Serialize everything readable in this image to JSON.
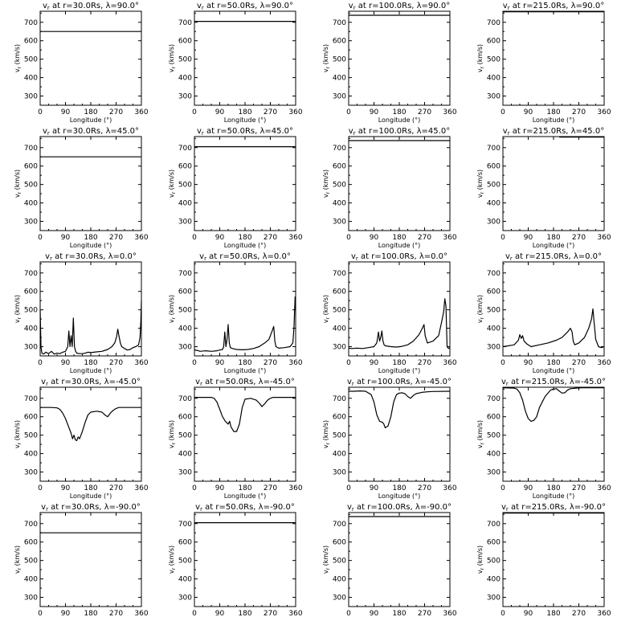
{
  "labels": {
    "ylabel": "v",
    "ylabel_sub": "r",
    "ylabel_unit": "(km/s)",
    "xlabel": "Longitude (°)",
    "title_fmt": "v{r} at r={R}Rs, λ={L}°"
  },
  "axes": {
    "xlim": [
      0,
      360
    ],
    "ylim": [
      250,
      760
    ],
    "xticks": [
      0,
      90,
      180,
      270,
      360
    ],
    "yticks": [
      300,
      400,
      500,
      600,
      700
    ]
  },
  "chart_data": [
    {
      "type": "line",
      "r": "30.0",
      "lat": "90.0",
      "title": "v_r at r=30.0Rs, λ=90.0°",
      "xlabel": "Longitude (°)",
      "ylabel": "v_r (km/s)",
      "xlim": [
        0,
        360
      ],
      "ylim": [
        250,
        760
      ],
      "x": [
        0,
        360
      ],
      "y": [
        650,
        650
      ]
    },
    {
      "type": "line",
      "r": "50.0",
      "lat": "90.0",
      "title": "v_r at r=50.0Rs, λ=90.0°",
      "xlabel": "Longitude (°)",
      "ylabel": "v_r (km/s)",
      "xlim": [
        0,
        360
      ],
      "ylim": [
        250,
        760
      ],
      "x": [
        0,
        360
      ],
      "y": [
        705,
        705
      ]
    },
    {
      "type": "line",
      "r": "100.0",
      "lat": "90.0",
      "title": "v_r at r=100.0Rs, λ=90.0°",
      "xlabel": "Longitude (°)",
      "ylabel": "v_r (km/s)",
      "xlim": [
        0,
        360
      ],
      "ylim": [
        250,
        760
      ],
      "x": [
        0,
        360
      ],
      "y": [
        738,
        738
      ]
    },
    {
      "type": "line",
      "r": "215.0",
      "lat": "90.0",
      "title": "v_r at r=215.0Rs, λ=90.0°",
      "xlabel": "Longitude (°)",
      "ylabel": "v_r (km/s)",
      "xlim": [
        0,
        360
      ],
      "ylim": [
        250,
        760
      ],
      "x": [
        0,
        360
      ],
      "y": [
        757,
        757
      ]
    },
    {
      "type": "line",
      "r": "30.0",
      "lat": "45.0",
      "title": "v_r at r=30.0Rs, λ=45.0°",
      "xlabel": "Longitude (°)",
      "ylabel": "v_r (km/s)",
      "xlim": [
        0,
        360
      ],
      "ylim": [
        250,
        760
      ],
      "x": [
        0,
        360
      ],
      "y": [
        650,
        650
      ]
    },
    {
      "type": "line",
      "r": "50.0",
      "lat": "45.0",
      "title": "v_r at r=50.0Rs, λ=45.0°",
      "xlabel": "Longitude (°)",
      "ylabel": "v_r (km/s)",
      "xlim": [
        0,
        360
      ],
      "ylim": [
        250,
        760
      ],
      "x": [
        0,
        360
      ],
      "y": [
        705,
        705
      ]
    },
    {
      "type": "line",
      "r": "100.0",
      "lat": "45.0",
      "title": "v_r at r=100.0Rs, λ=45.0°",
      "xlabel": "Longitude (°)",
      "ylabel": "v_r (km/s)",
      "xlim": [
        0,
        360
      ],
      "ylim": [
        250,
        760
      ],
      "x": [
        0,
        360
      ],
      "y": [
        738,
        738
      ]
    },
    {
      "type": "line",
      "r": "215.0",
      "lat": "45.0",
      "title": "v_r at r=215.0Rs, λ=45.0°",
      "xlabel": "Longitude (°)",
      "ylabel": "v_r (km/s)",
      "xlim": [
        0,
        360
      ],
      "ylim": [
        250,
        760
      ],
      "x": [
        200,
        360
      ],
      "y": [
        757,
        757
      ]
    },
    {
      "type": "line",
      "r": "30.0",
      "lat": "0.0",
      "title": "v_r at r=30.0Rs, λ=0.0°",
      "xlabel": "Longitude (°)",
      "ylabel": "v_r (km/s)",
      "xlim": [
        0,
        360
      ],
      "ylim": [
        250,
        760
      ],
      "x": [
        0,
        3,
        6,
        12,
        20,
        30,
        40,
        50,
        60,
        70,
        80,
        90,
        98,
        102,
        106,
        110,
        114,
        118,
        122,
        126,
        130,
        140,
        150,
        160,
        170,
        180,
        200,
        220,
        240,
        255,
        265,
        272,
        276,
        280,
        285,
        290,
        300,
        310,
        320,
        330,
        340,
        350,
        355,
        358,
        360
      ],
      "y": [
        500,
        300,
        265,
        260,
        270,
        262,
        275,
        260,
        265,
        262,
        270,
        275,
        300,
        385,
        300,
        360,
        300,
        455,
        300,
        275,
        265,
        262,
        262,
        265,
        270,
        268,
        272,
        275,
        285,
        300,
        320,
        355,
        395,
        360,
        320,
        300,
        290,
        282,
        285,
        295,
        300,
        310,
        350,
        440,
        550
      ]
    },
    {
      "type": "line",
      "r": "50.0",
      "lat": "0.0",
      "title": "v_r at r=50.0Rs, λ=0.0°",
      "xlabel": "Longitude (°)",
      "ylabel": "v_r (km/s)",
      "xlim": [
        0,
        360
      ],
      "ylim": [
        250,
        760
      ],
      "x": [
        0,
        5,
        10,
        20,
        40,
        60,
        80,
        90,
        100,
        104,
        108,
        112,
        116,
        120,
        124,
        128,
        135,
        150,
        170,
        190,
        210,
        230,
        250,
        265,
        275,
        282,
        286,
        290,
        300,
        320,
        340,
        350,
        354,
        358,
        360
      ],
      "y": [
        285,
        280,
        280,
        275,
        278,
        275,
        278,
        282,
        285,
        300,
        380,
        300,
        340,
        420,
        320,
        295,
        290,
        285,
        283,
        285,
        290,
        300,
        320,
        340,
        380,
        410,
        330,
        300,
        292,
        295,
        300,
        320,
        400,
        570,
        500
      ]
    },
    {
      "type": "line",
      "r": "100.0",
      "lat": "0.0",
      "title": "v_r at r=100.0Rs, λ=0.0°",
      "xlabel": "Longitude (°)",
      "ylabel": "v_r (km/s)",
      "xlim": [
        0,
        360
      ],
      "ylim": [
        250,
        760
      ],
      "x": [
        0,
        10,
        30,
        50,
        70,
        90,
        100,
        106,
        110,
        114,
        118,
        122,
        126,
        130,
        150,
        170,
        190,
        210,
        230,
        250,
        262,
        268,
        272,
        280,
        300,
        320,
        330,
        338,
        342,
        346,
        350,
        355,
        360
      ],
      "y": [
        292,
        290,
        292,
        290,
        295,
        300,
        320,
        380,
        330,
        350,
        385,
        330,
        310,
        305,
        300,
        298,
        302,
        310,
        330,
        365,
        400,
        420,
        360,
        320,
        330,
        360,
        430,
        490,
        560,
        520,
        300,
        290,
        295
      ]
    },
    {
      "type": "line",
      "r": "215.0",
      "lat": "0.0",
      "title": "v_r at r=215.0Rs, λ=0.0°",
      "xlabel": "Longitude (°)",
      "ylabel": "v_r (km/s)",
      "xlim": [
        0,
        360
      ],
      "ylim": [
        250,
        760
      ],
      "x": [
        0,
        20,
        40,
        55,
        60,
        65,
        70,
        75,
        85,
        100,
        130,
        160,
        190,
        210,
        230,
        240,
        246,
        250,
        255,
        270,
        290,
        305,
        315,
        320,
        325,
        330,
        340,
        350,
        360
      ],
      "y": [
        300,
        305,
        310,
        335,
        365,
        345,
        360,
        330,
        315,
        300,
        310,
        320,
        335,
        350,
        380,
        400,
        380,
        330,
        310,
        320,
        350,
        400,
        450,
        505,
        420,
        340,
        300,
        295,
        300
      ]
    },
    {
      "type": "line",
      "r": "30.0",
      "lat": "-45.0",
      "title": "v_r at r=30.0Rs, λ=-45.0°",
      "xlabel": "Longitude (°)",
      "ylabel": "v_r (km/s)",
      "xlim": [
        0,
        360
      ],
      "ylim": [
        250,
        760
      ],
      "x": [
        0,
        40,
        60,
        70,
        80,
        90,
        100,
        110,
        115,
        120,
        125,
        130,
        135,
        140,
        150,
        160,
        170,
        180,
        200,
        220,
        230,
        240,
        250,
        260,
        270,
        280,
        290,
        300,
        360
      ],
      "y": [
        650,
        650,
        648,
        640,
        620,
        590,
        550,
        510,
        480,
        500,
        475,
        470,
        490,
        480,
        520,
        570,
        610,
        625,
        630,
        625,
        610,
        600,
        620,
        635,
        645,
        650,
        650,
        650,
        650
      ]
    },
    {
      "type": "line",
      "r": "50.0",
      "lat": "-45.0",
      "title": "v_r at r=50.0Rs, λ=-45.0°",
      "xlabel": "Longitude (°)",
      "ylabel": "v_r (km/s)",
      "xlim": [
        0,
        360
      ],
      "ylim": [
        250,
        760
      ],
      "x": [
        0,
        50,
        60,
        70,
        80,
        90,
        100,
        110,
        120,
        125,
        130,
        140,
        150,
        160,
        170,
        180,
        200,
        220,
        230,
        240,
        250,
        260,
        270,
        280,
        360
      ],
      "y": [
        705,
        705,
        705,
        700,
        680,
        640,
        600,
        575,
        560,
        575,
        545,
        520,
        520,
        560,
        650,
        695,
        700,
        690,
        675,
        655,
        670,
        690,
        700,
        705,
        705
      ]
    },
    {
      "type": "line",
      "r": "100.0",
      "lat": "-45.0",
      "title": "v_r at r=100.0Rs, λ=-45.0°",
      "xlabel": "Longitude (°)",
      "ylabel": "v_r (km/s)",
      "xlim": [
        0,
        360
      ],
      "ylim": [
        250,
        760
      ],
      "x": [
        0,
        20,
        40,
        60,
        80,
        90,
        100,
        110,
        120,
        125,
        130,
        140,
        150,
        160,
        170,
        180,
        190,
        200,
        210,
        220,
        230,
        240,
        260,
        280,
        300,
        360
      ],
      "y": [
        738,
        738,
        740,
        738,
        720,
        680,
        610,
        575,
        570,
        560,
        540,
        550,
        600,
        680,
        720,
        728,
        730,
        725,
        710,
        700,
        715,
        725,
        732,
        735,
        737,
        738
      ]
    },
    {
      "type": "line",
      "r": "215.0",
      "lat": "-45.0",
      "title": "v_r at r=215.0Rs, λ=-45.0°",
      "xlabel": "Longitude (°)",
      "ylabel": "v_r (km/s)",
      "xlim": [
        0,
        360
      ],
      "ylim": [
        250,
        760
      ],
      "x": [
        0,
        40,
        50,
        60,
        70,
        80,
        90,
        100,
        110,
        120,
        130,
        150,
        170,
        180,
        190,
        200,
        210,
        220,
        230,
        240,
        260,
        280,
        360
      ],
      "y": [
        757,
        755,
        750,
        730,
        690,
        630,
        590,
        575,
        580,
        600,
        650,
        710,
        745,
        750,
        752,
        740,
        728,
        730,
        745,
        752,
        755,
        757,
        757
      ]
    },
    {
      "type": "line",
      "r": "30.0",
      "lat": "-90.0",
      "title": "v_r at r=30.0Rs, λ=-90.0°",
      "xlabel": "Longitude (°)",
      "ylabel": "v_r (km/s)",
      "xlim": [
        0,
        360
      ],
      "ylim": [
        250,
        760
      ],
      "x": [
        0,
        360
      ],
      "y": [
        650,
        650
      ]
    },
    {
      "type": "line",
      "r": "50.0",
      "lat": "-90.0",
      "title": "v_r at r=50.0Rs, λ=-90.0°",
      "xlabel": "Longitude (°)",
      "ylabel": "v_r (km/s)",
      "xlim": [
        0,
        360
      ],
      "ylim": [
        250,
        760
      ],
      "x": [
        0,
        360
      ],
      "y": [
        705,
        705
      ]
    },
    {
      "type": "line",
      "r": "100.0",
      "lat": "-90.0",
      "title": "v_r at r=100.0Rs, λ=-90.0°",
      "xlabel": "Longitude (°)",
      "ylabel": "v_r (km/s)",
      "xlim": [
        0,
        360
      ],
      "ylim": [
        250,
        760
      ],
      "x": [
        0,
        360
      ],
      "y": [
        738,
        738
      ]
    },
    {
      "type": "line",
      "r": "215.0",
      "lat": "-90.0",
      "title": "v_r at r=215.0Rs, λ=-90.0°",
      "xlabel": "Longitude (°)",
      "ylabel": "v_r (km/s)",
      "xlim": [
        0,
        360
      ],
      "ylim": [
        250,
        760
      ],
      "x": [
        0,
        360
      ],
      "y": [
        757,
        757
      ]
    }
  ]
}
